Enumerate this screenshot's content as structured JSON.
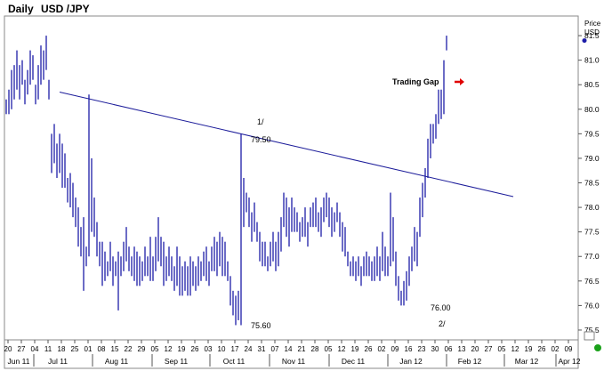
{
  "header": {
    "period": "Daily",
    "symbol": "USD /JPY"
  },
  "price_axis": {
    "label_top": "Price",
    "label_bottom": "USD"
  },
  "annotations": {
    "trading_gap": "Trading Gap",
    "label_1": "1/",
    "label_2": "2/",
    "value_1": "79.50",
    "value_low1": "75.60",
    "value_low2": "76.00"
  },
  "chart_data": {
    "type": "bar",
    "title": "Daily USD /JPY",
    "ylabel": "Price USD",
    "ylim": [
      75.3,
      81.9
    ],
    "y_ticks": [
      75.5,
      76,
      76.5,
      77,
      77.5,
      78,
      78.5,
      79,
      79.5,
      80,
      80.5,
      81,
      81.5
    ],
    "last_value_marker": 81.4,
    "x_tick_labels": [
      "20",
      "27",
      "04",
      "11",
      "18",
      "25",
      "01",
      "08",
      "15",
      "22",
      "29",
      "05",
      "12",
      "19",
      "26",
      "03",
      "10",
      "17",
      "24",
      "31",
      "07",
      "14",
      "21",
      "28",
      "05",
      "12",
      "19",
      "26",
      "02",
      "09",
      "16",
      "23",
      "30",
      "06",
      "13",
      "20",
      "27",
      "05",
      "12",
      "19",
      "26",
      "02",
      "09"
    ],
    "month_labels": [
      "Jun 11",
      "Jul 11",
      "Aug 11",
      "Sep 11",
      "Oct 11",
      "Nov 11",
      "Dec 11",
      "Jan 12",
      "Feb 12",
      "Mar 12",
      "Apr 12"
    ],
    "trendline": {
      "start": {
        "bar": 20,
        "value": 80.35
      },
      "end": {
        "bar": 190,
        "value": 78.22
      }
    },
    "series": [
      {
        "values": [
          [
            80.2,
            79.9
          ],
          [
            80.4,
            79.9
          ],
          [
            80.8,
            80.0
          ],
          [
            80.9,
            80.2
          ],
          [
            81.2,
            80.4
          ],
          [
            80.9,
            80.2
          ],
          [
            81.0,
            80.5
          ],
          [
            80.6,
            80.1
          ],
          [
            80.8,
            80.3
          ],
          [
            81.2,
            80.5
          ],
          [
            81.1,
            80.6
          ],
          [
            80.5,
            80.1
          ],
          [
            80.9,
            80.2
          ],
          [
            81.3,
            80.5
          ],
          [
            81.2,
            80.6
          ],
          [
            81.5,
            80.8
          ],
          [
            80.6,
            80.2
          ],
          [
            79.5,
            78.7
          ],
          [
            79.7,
            78.9
          ],
          [
            79.3,
            78.6
          ],
          [
            79.5,
            78.7
          ],
          [
            79.3,
            78.4
          ],
          [
            79.1,
            78.4
          ],
          [
            78.6,
            78.1
          ],
          [
            78.7,
            78.0
          ],
          [
            78.5,
            77.8
          ],
          [
            78.2,
            77.6
          ],
          [
            78.0,
            77.2
          ],
          [
            77.6,
            77.0
          ],
          [
            77.8,
            76.3
          ],
          [
            77.2,
            76.8
          ],
          [
            80.3,
            77.0
          ],
          [
            79.0,
            77.5
          ],
          [
            78.2,
            77.4
          ],
          [
            77.7,
            77.0
          ],
          [
            77.3,
            76.8
          ],
          [
            77.3,
            76.4
          ],
          [
            77.1,
            76.5
          ],
          [
            76.9,
            76.6
          ],
          [
            77.3,
            76.7
          ],
          [
            77.0,
            76.4
          ],
          [
            76.9,
            76.6
          ],
          [
            77.1,
            75.9
          ],
          [
            77.0,
            76.6
          ],
          [
            77.3,
            76.7
          ],
          [
            77.6,
            76.9
          ],
          [
            77.2,
            76.7
          ],
          [
            77.0,
            76.6
          ],
          [
            77.2,
            76.5
          ],
          [
            77.1,
            76.4
          ],
          [
            77.0,
            76.4
          ],
          [
            76.9,
            76.5
          ],
          [
            77.2,
            76.6
          ],
          [
            77.0,
            76.6
          ],
          [
            77.4,
            76.5
          ],
          [
            77.0,
            76.5
          ],
          [
            77.4,
            76.7
          ],
          [
            77.8,
            76.9
          ],
          [
            77.4,
            76.8
          ],
          [
            77.3,
            76.4
          ],
          [
            77.0,
            76.5
          ],
          [
            77.2,
            76.6
          ],
          [
            77.0,
            76.5
          ],
          [
            76.8,
            76.3
          ],
          [
            77.2,
            76.4
          ],
          [
            77.0,
            76.2
          ],
          [
            76.8,
            76.2
          ],
          [
            76.9,
            76.3
          ],
          [
            76.8,
            76.2
          ],
          [
            77.0,
            76.2
          ],
          [
            76.9,
            76.4
          ],
          [
            76.8,
            76.3
          ],
          [
            77.0,
            76.4
          ],
          [
            76.9,
            76.5
          ],
          [
            77.1,
            76.6
          ],
          [
            77.2,
            76.5
          ],
          [
            76.9,
            76.4
          ],
          [
            77.2,
            76.7
          ],
          [
            77.4,
            76.7
          ],
          [
            77.3,
            76.6
          ],
          [
            77.5,
            76.8
          ],
          [
            77.4,
            76.6
          ],
          [
            77.3,
            76.6
          ],
          [
            76.9,
            76.5
          ],
          [
            76.6,
            76.0
          ],
          [
            76.3,
            75.8
          ],
          [
            76.2,
            75.6
          ],
          [
            76.3,
            75.7
          ],
          [
            79.5,
            75.6
          ],
          [
            78.6,
            77.6
          ],
          [
            78.3,
            77.9
          ],
          [
            78.2,
            77.6
          ],
          [
            77.9,
            77.3
          ],
          [
            78.1,
            77.5
          ],
          [
            77.7,
            77.3
          ],
          [
            77.5,
            76.9
          ],
          [
            77.3,
            76.8
          ],
          [
            77.3,
            76.8
          ],
          [
            77.0,
            76.7
          ],
          [
            77.3,
            76.8
          ],
          [
            77.5,
            76.9
          ],
          [
            77.3,
            76.7
          ],
          [
            77.5,
            76.8
          ],
          [
            77.8,
            77.1
          ],
          [
            78.3,
            77.6
          ],
          [
            78.2,
            77.4
          ],
          [
            78.0,
            77.2
          ],
          [
            78.2,
            77.5
          ],
          [
            78.0,
            77.5
          ],
          [
            77.9,
            77.5
          ],
          [
            77.7,
            77.3
          ],
          [
            77.8,
            77.4
          ],
          [
            78.0,
            77.4
          ],
          [
            77.7,
            77.2
          ],
          [
            78.0,
            77.6
          ],
          [
            78.1,
            77.6
          ],
          [
            78.2,
            77.6
          ],
          [
            77.9,
            77.5
          ],
          [
            78.0,
            77.4
          ],
          [
            78.2,
            77.7
          ],
          [
            78.3,
            77.8
          ],
          [
            78.2,
            77.6
          ],
          [
            78.0,
            77.4
          ],
          [
            77.9,
            77.5
          ],
          [
            78.1,
            77.7
          ],
          [
            77.9,
            77.4
          ],
          [
            77.7,
            77.1
          ],
          [
            77.6,
            77.0
          ],
          [
            77.1,
            76.8
          ],
          [
            76.9,
            76.6
          ],
          [
            77.0,
            76.6
          ],
          [
            76.9,
            76.5
          ],
          [
            77.0,
            76.6
          ],
          [
            76.8,
            76.4
          ],
          [
            77.0,
            76.6
          ],
          [
            77.1,
            76.6
          ],
          [
            77.0,
            76.6
          ],
          [
            76.9,
            76.5
          ],
          [
            77.0,
            76.5
          ],
          [
            77.2,
            76.6
          ],
          [
            77.0,
            76.5
          ],
          [
            77.5,
            76.7
          ],
          [
            77.2,
            76.6
          ],
          [
            77.0,
            76.6
          ],
          [
            78.3,
            76.8
          ],
          [
            77.8,
            76.9
          ],
          [
            77.1,
            76.4
          ],
          [
            76.6,
            76.1
          ],
          [
            76.3,
            76.0
          ],
          [
            76.5,
            76.0
          ],
          [
            76.7,
            76.1
          ],
          [
            77.0,
            76.4
          ],
          [
            77.2,
            76.7
          ],
          [
            77.6,
            76.9
          ],
          [
            77.5,
            76.8
          ],
          [
            78.2,
            77.4
          ],
          [
            78.5,
            77.8
          ],
          [
            78.8,
            78.2
          ],
          [
            79.4,
            78.6
          ],
          [
            79.7,
            79.0
          ],
          [
            79.7,
            79.3
          ],
          [
            79.9,
            79.4
          ],
          [
            80.4,
            79.7
          ],
          [
            80.4,
            79.8
          ],
          [
            81.0,
            79.9
          ],
          [
            81.5,
            81.2
          ]
        ]
      }
    ]
  }
}
